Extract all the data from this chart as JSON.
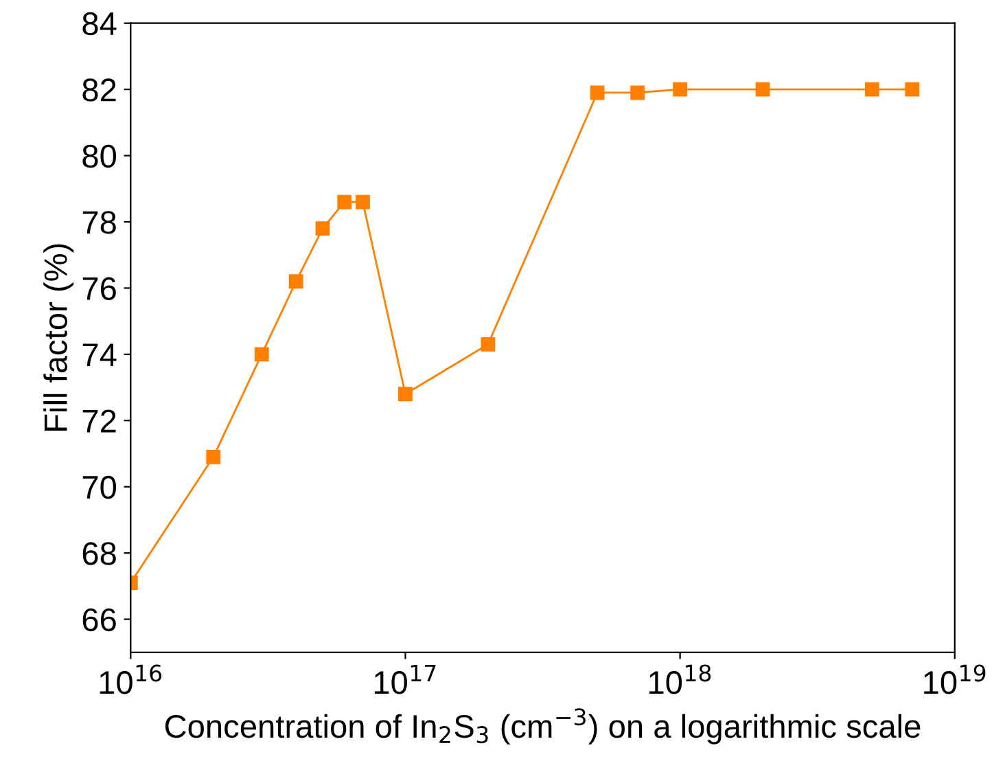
{
  "chart_data": {
    "type": "line",
    "xlabel": "Concentration of In$_{2}$S$_{3}$ (cm$^{−3}$) on a logarithmic scale",
    "ylabel": "Fill factor (%)",
    "log": "x",
    "marker": "square",
    "line_style": "solid",
    "grid": false,
    "legend": false,
    "x": [
      1e+16,
      2e+16,
      3e+16,
      4e+16,
      5e+16,
      6e+16,
      7e+16,
      1e+17,
      2e+17,
      5e+17,
      7e+17,
      1e+18,
      2e+18,
      5e+18,
      7e+18
    ],
    "series": [
      {
        "color": "#ff8000",
        "values": [
          67.1,
          70.9,
          74.0,
          76.2,
          77.8,
          78.6,
          78.6,
          72.8,
          74.3,
          81.9,
          81.9,
          82.0,
          82.0,
          82.0,
          82.0
        ]
      }
    ],
    "xlim": [
      1e+16,
      1e+19
    ],
    "xticks": [
      {
        "value": 1e+16,
        "label": "10$^{16}$"
      },
      {
        "value": 1e+17,
        "label": "10$^{17}$"
      },
      {
        "value": 1e+18,
        "label": "10$^{18}$"
      },
      {
        "value": 1e+19,
        "label": "10$^{19}$"
      }
    ],
    "ylim": [
      65,
      84
    ],
    "yticks": [
      66,
      68,
      70,
      72,
      74,
      76,
      78,
      80,
      82,
      84
    ]
  }
}
